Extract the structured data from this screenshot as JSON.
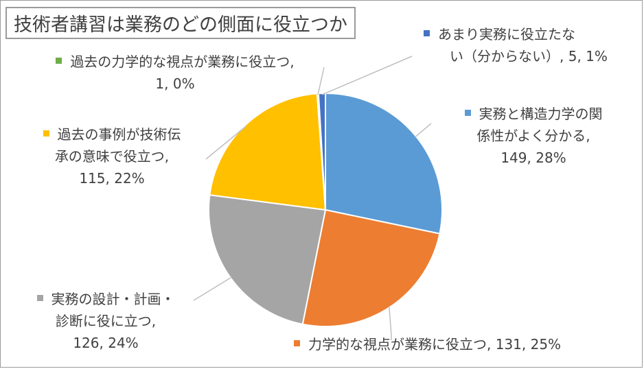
{
  "chart_data": {
    "type": "pie",
    "title": "技術者講習は業務のどの側面に役立つか",
    "slices": [
      {
        "key": "jitsumu_kozo",
        "label": "実務と構造力学の関係性がよく分かる",
        "value": 149,
        "percent": "28%",
        "color": "#5b9bd5"
      },
      {
        "key": "rikigaku",
        "label": "力学的な視点が業務に役立つ",
        "value": 131,
        "percent": "25%",
        "color": "#ed7d31"
      },
      {
        "key": "sekkei",
        "label": "実務の設計・計画・診断に役に立つ",
        "value": 126,
        "percent": "24%",
        "color": "#a5a5a5"
      },
      {
        "key": "jirei",
        "label": "過去の事例が技術伝承の意味で役立つ",
        "value": 115,
        "percent": "22%",
        "color": "#ffc000"
      },
      {
        "key": "kako_rikigaku",
        "label": "過去の力学的な視点が業務に役立つ",
        "value": 1,
        "percent": "0%",
        "color": "#70ad47"
      },
      {
        "key": "amari",
        "label": "あまり実務に役立たない（分からない）",
        "value": 5,
        "percent": "1%",
        "color": "#4472c4"
      }
    ],
    "data_labels": {
      "jitsumu_kozo": [
        "実務と構造力学の関",
        "係性がよく分かる,",
        "149, 28%"
      ],
      "rikigaku": [
        "力学的な視点が業務に役立つ, 131, 25%"
      ],
      "sekkei": [
        "実務の設計・計画・",
        "診断に役に立つ,",
        "126, 24%"
      ],
      "jirei": [
        "過去の事例が技術伝",
        "承の意味で役立つ,",
        "115, 22%"
      ],
      "kako_rikigaku": [
        "過去の力学的な視点が業務に役立つ,",
        "1, 0%"
      ],
      "amari": [
        "あまり実務に役立たな",
        "い（分からない）, 5, 1%"
      ]
    }
  }
}
